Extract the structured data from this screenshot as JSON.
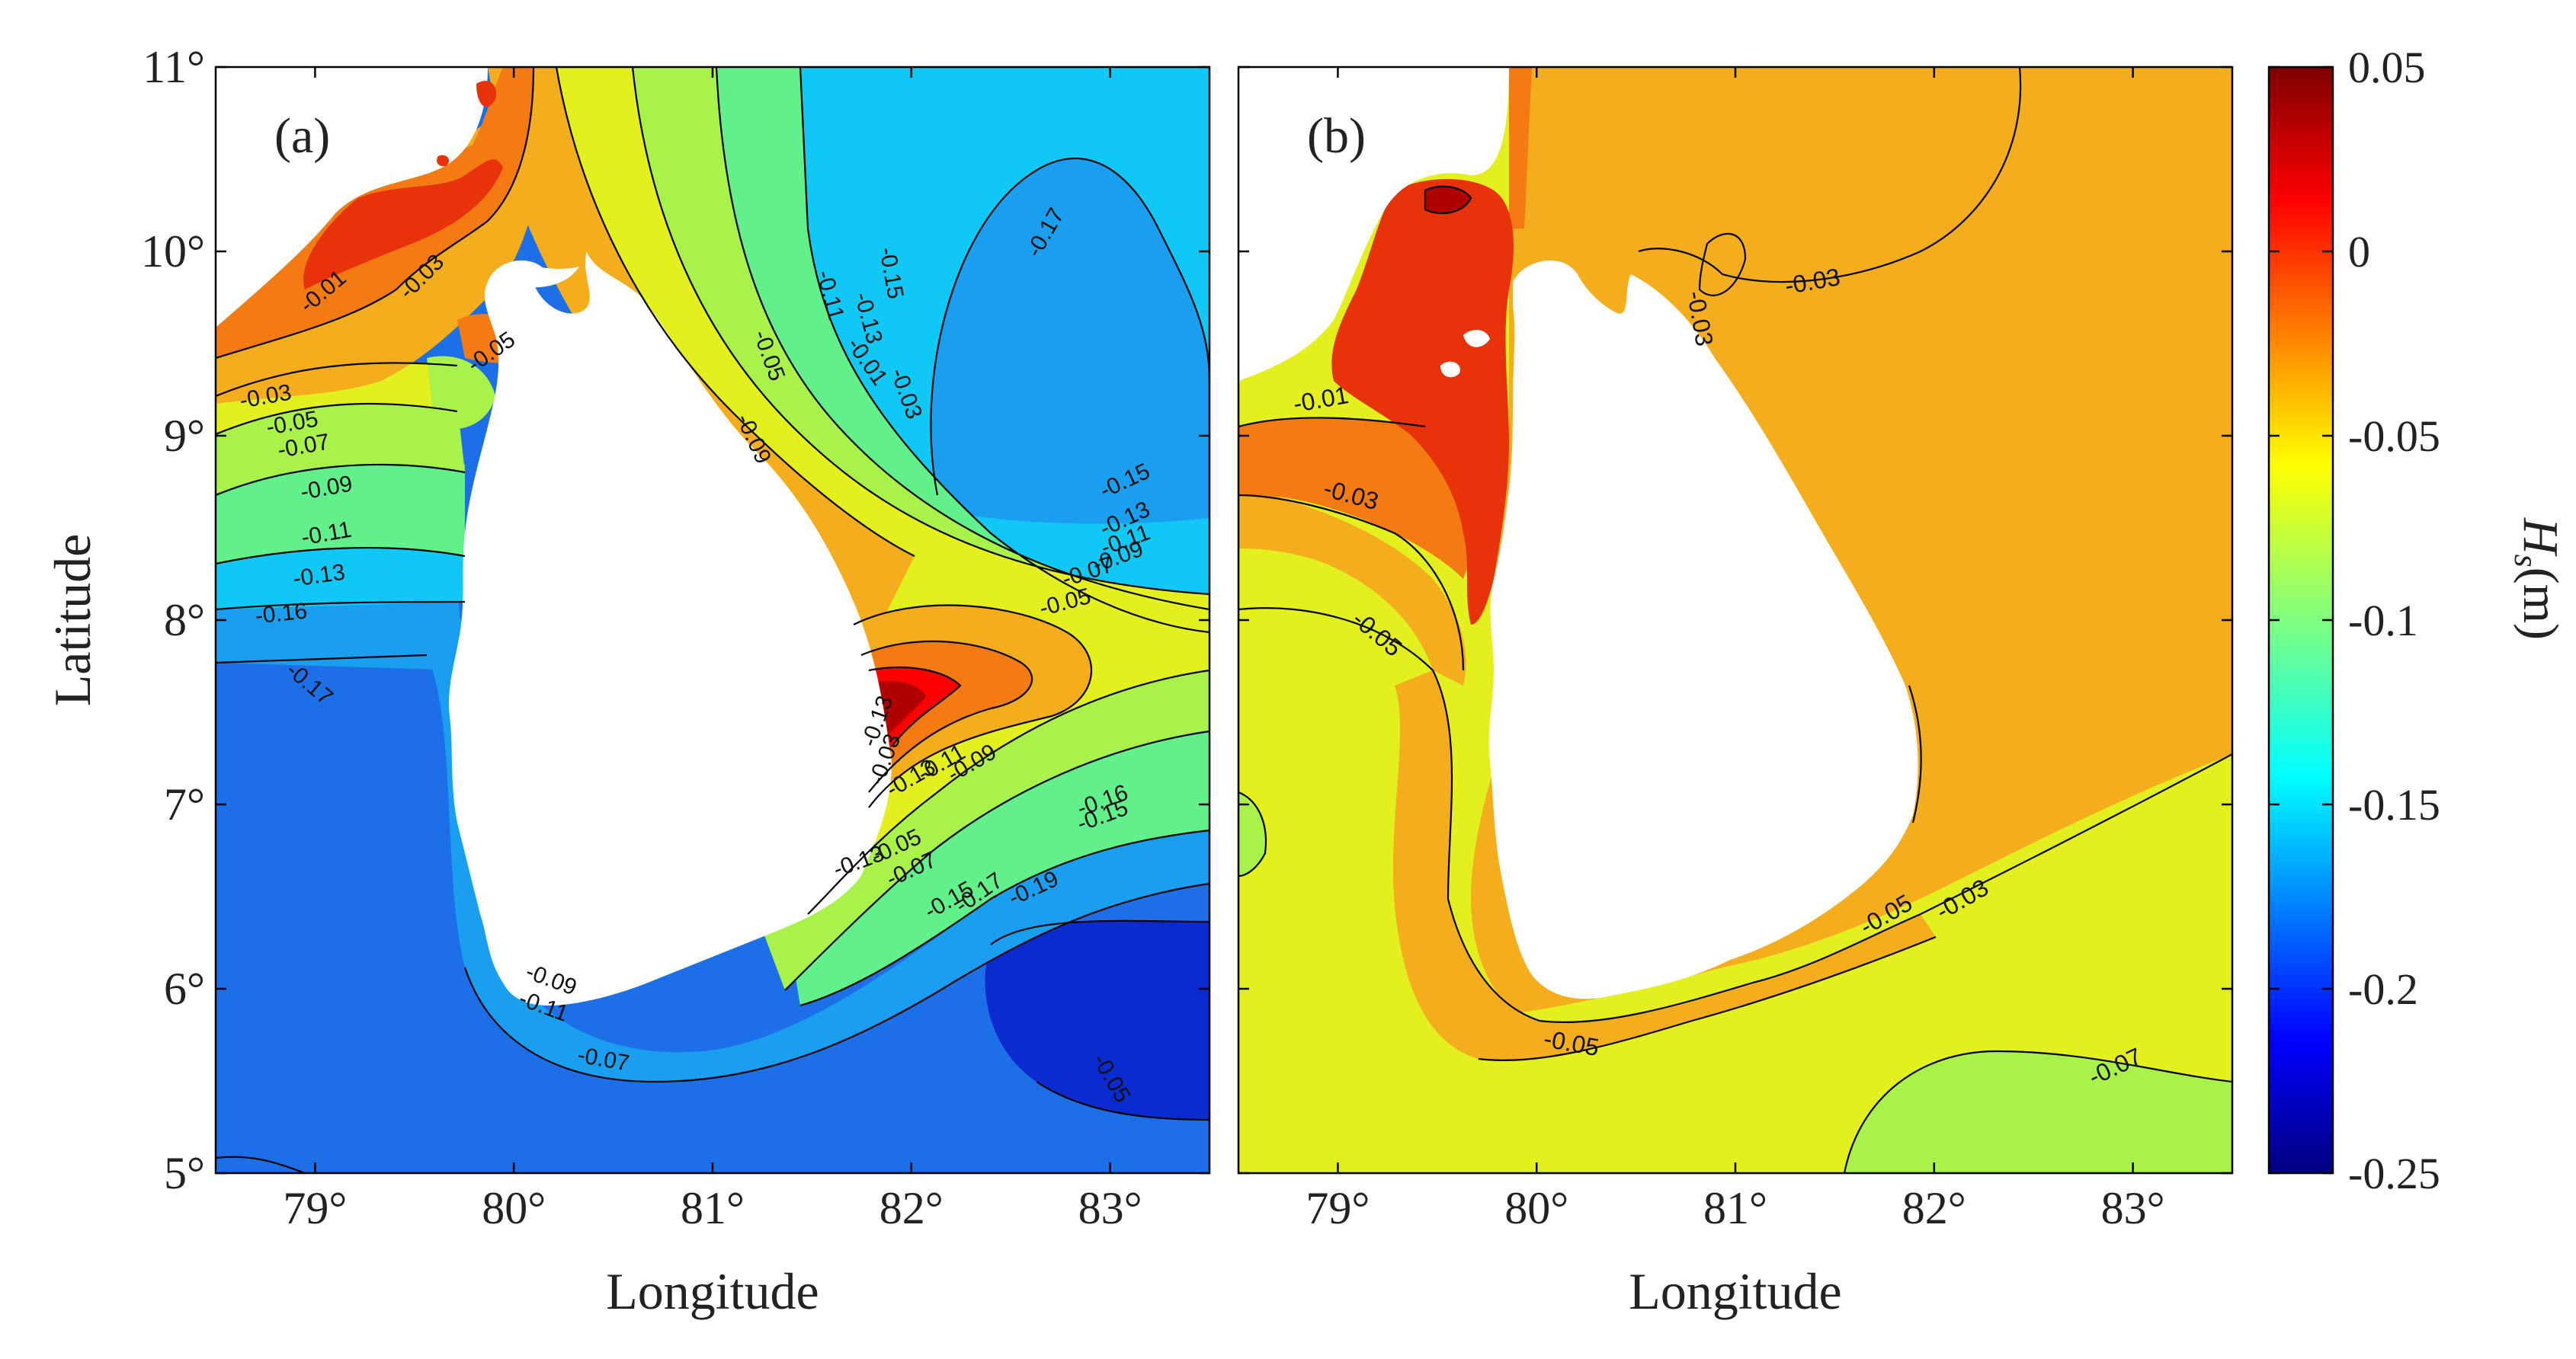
{
  "panels": [
    {
      "label": "(a)"
    },
    {
      "label": "(b)"
    }
  ],
  "axes": {
    "xlabel": "Longitude",
    "ylabel": "Latitude",
    "xticks": [
      "79°",
      "80°",
      "81°",
      "82°",
      "83°"
    ],
    "xtick_values": [
      79,
      80,
      81,
      82,
      83
    ],
    "yticks": [
      "11°",
      "10°",
      "9°",
      "8°",
      "7°",
      "6°",
      "5°"
    ],
    "ytick_values": [
      11,
      10,
      9,
      8,
      7,
      6,
      5
    ],
    "xlim": [
      78.5,
      83.5
    ],
    "ylim": [
      5,
      11
    ]
  },
  "colorbar": {
    "ticks": [
      "0.05",
      "0",
      "-0.05",
      "-0.1",
      "-0.15",
      "-0.2",
      "-0.25"
    ],
    "tick_values": [
      0.05,
      0,
      -0.05,
      -0.1,
      -0.15,
      -0.2,
      -0.25
    ],
    "range": [
      -0.25,
      0.05
    ],
    "label_main": "H",
    "label_sub": "s",
    "label_unit": "(m)",
    "colormap": "jet"
  },
  "panel_a": {
    "contour_labels": [
      "-0.01",
      "-0.03",
      "-0.05",
      "-0.03",
      "-0.05",
      "-0.07",
      "-0.09",
      "-0.11",
      "-0.13",
      "-0.16",
      "-0.17",
      "-0.15",
      "-0.13",
      "-0.11",
      "-0.09",
      "-0.07",
      "-0.05",
      "-0.03",
      "-0.01",
      "-0.05",
      "-0.09",
      "-0.11",
      "-0.13",
      "-0.15",
      "-0.17",
      "-0.13",
      "-0.15",
      "-0.17",
      "-0.19",
      "-0.16",
      "-0.15",
      "-0.13",
      "-0.11",
      "-0.09",
      "-0.07",
      "-0.05",
      "-0.03",
      "-0.13",
      "-0.11",
      "-0.09",
      "-0.07",
      "-0.05"
    ]
  },
  "panel_b": {
    "contour_labels": [
      "-0.01",
      "-0.03",
      "-0.03",
      "-0.03",
      "-0.05",
      "-0.03",
      "-0.05",
      "-0.05",
      "-0.07"
    ]
  },
  "colors": {
    "c_p05": "#7f0000",
    "c_p00": "#ff0000",
    "c_m01": "#e8320a",
    "c_m03": "#f47a12",
    "c_m05": "#f4ad1c",
    "c_m07": "#e3f01e",
    "c_m09": "#a8f24a",
    "c_m11": "#62f08a",
    "c_m13": "#28e0d0",
    "c_m15": "#10c8f5",
    "c_m16": "#1a9ff0",
    "c_m17": "#1d6fe8",
    "c_m19": "#1f4fe0",
    "c_m21": "#0b2bd0"
  }
}
